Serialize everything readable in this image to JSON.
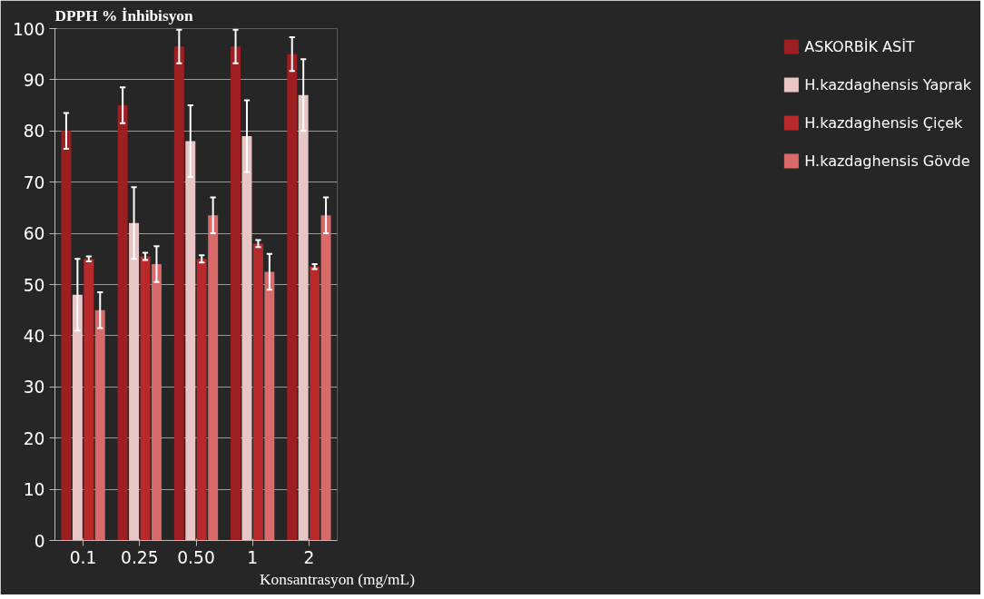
{
  "chart_data": {
    "type": "bar",
    "ylabel": "DPPH % İnhibisyon",
    "xlabel": "Konsantrasyon (mg/mL)",
    "categories": [
      "0.1",
      "0.25",
      "0.50",
      "1",
      "2"
    ],
    "series": [
      {
        "name": "ASKORBİK ASİT",
        "color": "#9e1f22",
        "values": [
          80,
          85,
          96.5,
          96.5,
          95
        ],
        "errors": [
          3.5,
          3.5,
          3.3,
          3.3,
          3.3
        ]
      },
      {
        "name": "H.kazdaghensis Yaprak",
        "color": "#e8c6c6",
        "values": [
          48,
          62,
          78,
          79,
          87
        ],
        "errors": [
          7,
          7,
          7,
          7,
          7
        ]
      },
      {
        "name": "H.kazdaghensis Çiçek",
        "color": "#b8292b",
        "values": [
          55,
          55.5,
          55,
          58,
          53.5
        ],
        "errors": [
          0.5,
          0.7,
          0.7,
          0.7,
          0.5
        ]
      },
      {
        "name": "H.kazdaghensis Gövde",
        "color": "#d96a6a",
        "values": [
          45,
          54,
          63.5,
          52.5,
          63.5
        ],
        "errors": [
          3.5,
          3.5,
          3.5,
          3.5,
          3.5
        ]
      }
    ],
    "ylim": [
      0,
      100
    ],
    "yticks": [
      0,
      10,
      20,
      30,
      40,
      50,
      60,
      70,
      80,
      90,
      100
    ],
    "grid": "y",
    "legend": "right"
  }
}
